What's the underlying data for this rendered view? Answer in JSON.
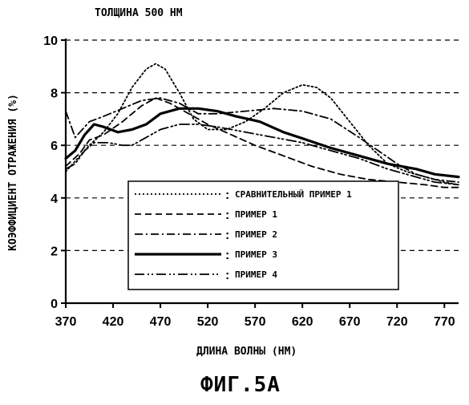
{
  "chart_data": {
    "type": "line",
    "title": "ТОЛЩИНА 500 НМ",
    "xlabel": "ДЛИНА ВОЛНЫ (НМ)",
    "ylabel": "КОЭФФИЦИЕНТ ОТРАЖЕНИЯ (%)",
    "caption": "ФИГ.5А",
    "xlim": [
      370,
      785
    ],
    "ylim": [
      0,
      10
    ],
    "x_ticks": [
      "370",
      "420",
      "470",
      "520",
      "570",
      "620",
      "670",
      "720",
      "770"
    ],
    "y_ticks": [
      "0",
      "2",
      "4",
      "6",
      "8",
      "10"
    ],
    "grid": "horizontal-dashed",
    "legend_position": "lower-center",
    "series": [
      {
        "name": "СРАВНИТЕЛЬНЫЙ ПРИМЕР 1",
        "style": "dotted",
        "x": [
          370,
          380,
          395,
          410,
          425,
          440,
          455,
          465,
          475,
          490,
          505,
          520,
          540,
          560,
          580,
          600,
          620,
          635,
          650,
          670,
          690,
          710,
          730,
          750,
          770,
          785
        ],
        "y": [
          5.0,
          5.4,
          6.0,
          6.5,
          7.2,
          8.2,
          8.9,
          9.1,
          8.9,
          8.0,
          7.0,
          6.6,
          6.6,
          6.9,
          7.4,
          8.0,
          8.3,
          8.2,
          7.8,
          6.9,
          6.0,
          5.3,
          5.0,
          4.8,
          4.6,
          4.5
        ]
      },
      {
        "name": "ПРИМЕР 1",
        "style": "dashed",
        "x": [
          370,
          385,
          395,
          410,
          430,
          450,
          465,
          480,
          500,
          520,
          545,
          570,
          600,
          630,
          660,
          690,
          720,
          750,
          770,
          785
        ],
        "y": [
          5.2,
          5.7,
          6.2,
          6.4,
          6.9,
          7.5,
          7.8,
          7.6,
          7.2,
          6.8,
          6.4,
          6.0,
          5.6,
          5.2,
          4.9,
          4.7,
          4.6,
          4.5,
          4.4,
          4.4
        ]
      },
      {
        "name": "ПРИМЕР 2",
        "style": "dash-dot",
        "x": [
          370,
          380,
          395,
          410,
          430,
          450,
          470,
          490,
          510,
          530,
          560,
          590,
          620,
          650,
          680,
          700,
          720,
          740,
          760,
          785
        ],
        "y": [
          7.3,
          6.3,
          6.9,
          7.1,
          7.4,
          7.7,
          7.8,
          7.6,
          7.2,
          7.2,
          7.3,
          7.4,
          7.3,
          7.0,
          6.3,
          5.8,
          5.3,
          4.9,
          4.7,
          4.6
        ]
      },
      {
        "name": "ПРИМЕР 3",
        "style": "solid-thick",
        "x": [
          370,
          380,
          390,
          400,
          410,
          425,
          440,
          455,
          470,
          490,
          510,
          530,
          550,
          575,
          600,
          625,
          650,
          680,
          710,
          740,
          760,
          785
        ],
        "y": [
          5.5,
          5.8,
          6.4,
          6.8,
          6.7,
          6.5,
          6.6,
          6.8,
          7.2,
          7.4,
          7.4,
          7.3,
          7.1,
          6.9,
          6.5,
          6.2,
          5.9,
          5.6,
          5.3,
          5.1,
          4.9,
          4.8
        ]
      },
      {
        "name": "ПРИМЕР 4",
        "style": "dash-dot-dot",
        "x": [
          370,
          380,
          390,
          400,
          415,
          430,
          440,
          455,
          470,
          490,
          510,
          530,
          560,
          590,
          620,
          650,
          680,
          710,
          740,
          760,
          785
        ],
        "y": [
          5.1,
          5.3,
          5.8,
          6.1,
          6.1,
          6.0,
          6.0,
          6.3,
          6.6,
          6.8,
          6.8,
          6.7,
          6.5,
          6.3,
          6.1,
          5.8,
          5.5,
          5.1,
          4.8,
          4.6,
          4.5
        ]
      }
    ]
  }
}
